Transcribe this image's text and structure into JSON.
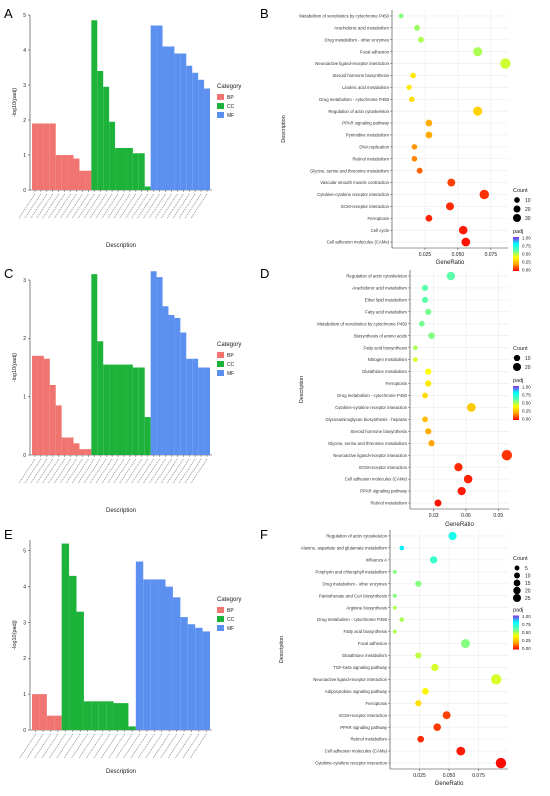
{
  "colors": {
    "BP": "#F07470",
    "CC": "#1DB33A",
    "MF": "#5B8FF0",
    "grid": "#EBEBEB",
    "axis": "#333333",
    "padj_gradient": [
      "#FF0000",
      "#FFA500",
      "#FFFF00",
      "#5CFFAA",
      "#00FFFF",
      "#8A2BE2"
    ]
  },
  "legend_text": {
    "category_title": "Category",
    "count_title": "Count",
    "padj_title": "padj"
  },
  "chart_data": [
    {
      "panel": "A",
      "type": "bar",
      "xlabel": "Description",
      "ylabel": "-log10(padj)",
      "ylim": [
        0,
        5
      ],
      "yticks": [
        0,
        1,
        2,
        3,
        4,
        5
      ],
      "legend_title": "Category",
      "legend": [
        "BP",
        "CC",
        "MF"
      ],
      "legend_position": "right",
      "series": [
        {
          "name": "BP",
          "values": [
            1.9,
            1.9,
            1.9,
            1.9,
            1.0,
            1.0,
            1.0,
            0.9,
            0.55,
            0.55
          ]
        },
        {
          "name": "CC",
          "values": [
            4.85,
            3.4,
            2.95,
            1.95,
            1.2,
            1.2,
            1.2,
            1.05,
            1.05,
            0.1
          ]
        },
        {
          "name": "MF",
          "values": [
            4.7,
            4.7,
            4.1,
            4.1,
            3.9,
            3.9,
            3.55,
            3.35,
            3.15,
            2.9
          ]
        }
      ]
    },
    {
      "panel": "B",
      "type": "scatter",
      "xlabel": "GeneRatio",
      "ylabel": "Description",
      "xlim": [
        0.0,
        0.088
      ],
      "xticks": [
        0.025,
        0.05,
        0.075
      ],
      "xtick_labels": [
        "0.025",
        "0.050",
        "0.075"
      ],
      "count_legend": [
        10,
        20,
        30
      ],
      "padj_legend": [
        "1.00",
        "0.75",
        "0.50",
        "0.25",
        "0.00"
      ],
      "points": [
        {
          "term": "Metabolism of xenobiotics by cytochrome P450",
          "x": 0.007,
          "count": 3,
          "padj": 0.55
        },
        {
          "term": "Arachidonic acid metabolism",
          "x": 0.019,
          "count": 6,
          "padj": 0.52
        },
        {
          "term": "Drug metabolism - other enzymes",
          "x": 0.022,
          "count": 6,
          "padj": 0.5
        },
        {
          "term": "Focal adhesion",
          "x": 0.065,
          "count": 20,
          "padj": 0.5
        },
        {
          "term": "Neuroactive ligand-receptor interaction",
          "x": 0.086,
          "count": 28,
          "padj": 0.46
        },
        {
          "term": "Steroid hormone biosynthesis",
          "x": 0.016,
          "count": 5,
          "padj": 0.35
        },
        {
          "term": "Linoleic acid metabolism",
          "x": 0.013,
          "count": 4,
          "padj": 0.35
        },
        {
          "term": "Drug metabolism - cytochrome P450",
          "x": 0.015,
          "count": 5,
          "padj": 0.33
        },
        {
          "term": "Regulation of actin cytoskeleton",
          "x": 0.065,
          "count": 20,
          "padj": 0.3
        },
        {
          "term": "PPAR signaling pathway",
          "x": 0.028,
          "count": 9,
          "padj": 0.22
        },
        {
          "term": "Pyrimidine metabolism",
          "x": 0.028,
          "count": 9,
          "padj": 0.21
        },
        {
          "term": "DNA replication",
          "x": 0.017,
          "count": 5,
          "padj": 0.18
        },
        {
          "term": "Retinol metabolism",
          "x": 0.017,
          "count": 5,
          "padj": 0.16
        },
        {
          "term": "Glycine, serine and threonine metabolism",
          "x": 0.021,
          "count": 6,
          "padj": 0.12
        },
        {
          "term": "Vascular smooth muscle contraction",
          "x": 0.045,
          "count": 14,
          "padj": 0.08
        },
        {
          "term": "Cytokine-cytokine receptor interaction",
          "x": 0.07,
          "count": 22,
          "padj": 0.06
        },
        {
          "term": "ECM-receptor interaction",
          "x": 0.044,
          "count": 14,
          "padj": 0.05
        },
        {
          "term": "Ferroptosis",
          "x": 0.028,
          "count": 9,
          "padj": 0.04
        },
        {
          "term": "Cell cycle",
          "x": 0.054,
          "count": 17,
          "padj": 0.03
        },
        {
          "term": "Cell adhesion molecules (CAMs)",
          "x": 0.056,
          "count": 18,
          "padj": 0.02
        }
      ]
    },
    {
      "panel": "C",
      "type": "bar",
      "xlabel": "Description",
      "ylabel": "-log10(padj)",
      "ylim": [
        0,
        3
      ],
      "yticks": [
        0,
        1,
        2,
        3
      ],
      "legend_title": "Category",
      "legend": [
        "BP",
        "CC",
        "MF"
      ],
      "legend_position": "right",
      "series": [
        {
          "name": "BP",
          "values": [
            1.7,
            1.7,
            1.65,
            1.2,
            0.85,
            0.3,
            0.3,
            0.2,
            0.1,
            0.1
          ]
        },
        {
          "name": "CC",
          "values": [
            3.1,
            1.95,
            1.55,
            1.55,
            1.55,
            1.55,
            1.55,
            1.5,
            1.5,
            0.65
          ]
        },
        {
          "name": "MF",
          "values": [
            3.15,
            3.05,
            2.55,
            2.4,
            2.35,
            2.1,
            1.65,
            1.65,
            1.5,
            1.5
          ]
        }
      ]
    },
    {
      "panel": "D",
      "type": "scatter",
      "xlabel": "GeneRatio",
      "ylabel": "Description",
      "xlim": [
        0.008,
        0.1
      ],
      "xticks": [
        0.03,
        0.06,
        0.09
      ],
      "xtick_labels": [
        "0.03",
        "0.06",
        "0.09"
      ],
      "count_legend": [
        10,
        20
      ],
      "padj_legend": [
        "1.00",
        "0.75",
        "0.50",
        "0.25",
        "0.00"
      ],
      "points": [
        {
          "term": "Regulation of actin cytoskeleton",
          "x": 0.046,
          "count": 12,
          "padj": 0.6
        },
        {
          "term": "Arachidonic acid metabolism",
          "x": 0.022,
          "count": 5,
          "padj": 0.6
        },
        {
          "term": "Ether lipid metabolism",
          "x": 0.022,
          "count": 5,
          "padj": 0.6
        },
        {
          "term": "Fatty acid metabolism",
          "x": 0.025,
          "count": 5,
          "padj": 0.57
        },
        {
          "term": "Metabolism of xenobiotics by cytochrome P450",
          "x": 0.019,
          "count": 4,
          "padj": 0.57
        },
        {
          "term": "Biosynthesis of amino acids",
          "x": 0.028,
          "count": 6,
          "padj": 0.55
        },
        {
          "term": "Fatty acid biosynthesis",
          "x": 0.013,
          "count": 2,
          "padj": 0.5
        },
        {
          "term": "Nitrogen metabolism",
          "x": 0.013,
          "count": 2,
          "padj": 0.45
        },
        {
          "term": "Glutathione metabolism",
          "x": 0.025,
          "count": 5,
          "padj": 0.4
        },
        {
          "term": "Ferroptosis",
          "x": 0.025,
          "count": 5,
          "padj": 0.35
        },
        {
          "term": "Drug metabolism - cytochrome P450",
          "x": 0.022,
          "count": 4,
          "padj": 0.32
        },
        {
          "term": "Cytokine-cytokine receptor interaction",
          "x": 0.065,
          "count": 13,
          "padj": 0.28
        },
        {
          "term": "Glycosaminoglycan biosynthesis - heparan",
          "x": 0.022,
          "count": 4,
          "padj": 0.25
        },
        {
          "term": "Steroid hormone biosynthesis",
          "x": 0.025,
          "count": 5,
          "padj": 0.22
        },
        {
          "term": "Glycine, serine and threonine metabolism",
          "x": 0.028,
          "count": 5,
          "padj": 0.2
        },
        {
          "term": "Neuroactive ligand-receptor interaction",
          "x": 0.098,
          "count": 20,
          "padj": 0.06
        },
        {
          "term": "ECM-receptor interaction",
          "x": 0.053,
          "count": 11,
          "padj": 0.05
        },
        {
          "term": "Cell adhesion molecules (CAMs)",
          "x": 0.062,
          "count": 12,
          "padj": 0.04
        },
        {
          "term": "PPAR signaling pathway",
          "x": 0.056,
          "count": 11,
          "padj": 0.03
        },
        {
          "term": "Retinol metabolism",
          "x": 0.034,
          "count": 7,
          "padj": 0.02
        }
      ]
    },
    {
      "panel": "E",
      "type": "bar",
      "xlabel": "Description",
      "ylabel": "-log10(padj)",
      "ylim": [
        0,
        5.3
      ],
      "yticks": [
        0,
        1,
        2,
        3,
        4,
        5
      ],
      "legend_title": "Category",
      "legend": [
        "BP",
        "CC",
        "MF"
      ],
      "legend_position": "right",
      "series": [
        {
          "name": "BP",
          "values": [
            1.0,
            1.0,
            0.4,
            0.4
          ]
        },
        {
          "name": "CC",
          "values": [
            5.2,
            4.3,
            3.3,
            0.8,
            0.8,
            0.8,
            0.8,
            0.75,
            0.75,
            0.1
          ]
        },
        {
          "name": "MF",
          "values": [
            4.7,
            4.2,
            4.2,
            4.2,
            4.0,
            3.7,
            3.15,
            2.95,
            2.85,
            2.75
          ]
        }
      ]
    },
    {
      "panel": "F",
      "type": "scatter",
      "xlabel": "GeneRatio",
      "ylabel": "Description",
      "xlim": [
        0.0,
        0.1
      ],
      "xticks": [
        0.025,
        0.05,
        0.075
      ],
      "xtick_labels": [
        "0.025",
        "0.050",
        "0.075"
      ],
      "count_legend": [
        5,
        10,
        15,
        20,
        25
      ],
      "padj_legend": [
        "1.00",
        "0.75",
        "0.50",
        "0.25",
        "0.00"
      ],
      "points": [
        {
          "term": "Regulation of actin cytoskeleton",
          "x": 0.053,
          "count": 11,
          "padj": 0.75
        },
        {
          "term": "Alanine, aspartate and glutamate metabolism",
          "x": 0.01,
          "count": 2,
          "padj": 0.82
        },
        {
          "term": "Influenza A",
          "x": 0.037,
          "count": 8,
          "padj": 0.68
        },
        {
          "term": "Porphyrin and chlorophyll metabolism",
          "x": 0.004,
          "count": 1,
          "padj": 0.55
        },
        {
          "term": "Drug metabolism - other enzymes",
          "x": 0.024,
          "count": 5,
          "padj": 0.55
        },
        {
          "term": "Pantothenate and CoA biosynthesis",
          "x": 0.004,
          "count": 1,
          "padj": 0.55
        },
        {
          "term": "Arginine biosynthesis",
          "x": 0.004,
          "count": 1,
          "padj": 0.5
        },
        {
          "term": "Drug metabolism - cytochrome P450",
          "x": 0.01,
          "count": 2,
          "padj": 0.5
        },
        {
          "term": "Fatty acid biosynthesis",
          "x": 0.004,
          "count": 1,
          "padj": 0.5
        },
        {
          "term": "Focal adhesion",
          "x": 0.064,
          "count": 14,
          "padj": 0.55
        },
        {
          "term": "Glutathione metabolism",
          "x": 0.024,
          "count": 5,
          "padj": 0.48
        },
        {
          "term": "TGF-beta signaling pathway",
          "x": 0.038,
          "count": 8,
          "padj": 0.45
        },
        {
          "term": "Neuroactive ligand-receptor interaction",
          "x": 0.09,
          "count": 20,
          "padj": 0.45
        },
        {
          "term": "Adipocytokine signaling pathway",
          "x": 0.03,
          "count": 6,
          "padj": 0.38
        },
        {
          "term": "Ferroptosis",
          "x": 0.024,
          "count": 5,
          "padj": 0.33
        },
        {
          "term": "ECM-receptor interaction",
          "x": 0.048,
          "count": 10,
          "padj": 0.08
        },
        {
          "term": "PPAR signaling pathway",
          "x": 0.04,
          "count": 9,
          "padj": 0.07
        },
        {
          "term": "Retinol metabolism",
          "x": 0.026,
          "count": 6,
          "padj": 0.05
        },
        {
          "term": "Cell adhesion molecules (CAMs)",
          "x": 0.06,
          "count": 13,
          "padj": 0.03
        },
        {
          "term": "Cytokine-cytokine receptor interaction",
          "x": 0.094,
          "count": 20,
          "padj": 0.01
        }
      ]
    }
  ]
}
